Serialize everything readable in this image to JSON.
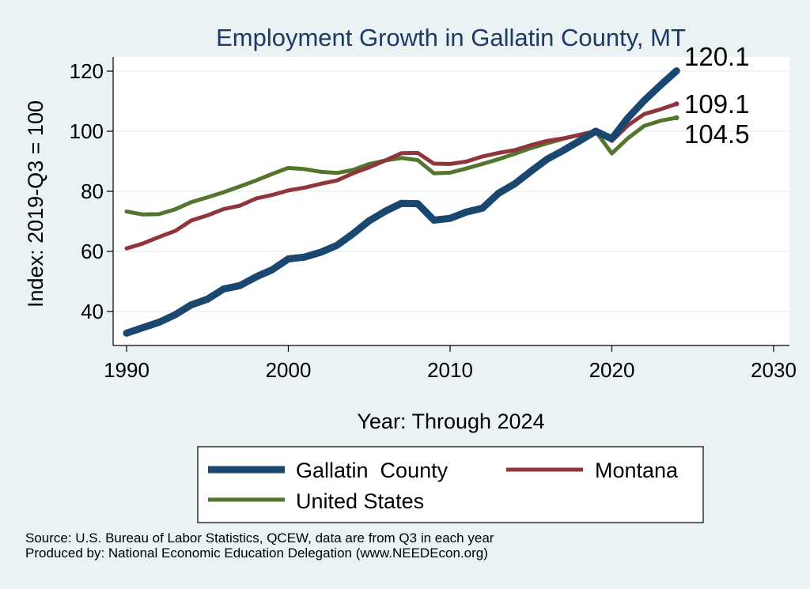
{
  "chart_data": {
    "type": "line",
    "title": "Employment Growth in Gallatin County, MT",
    "xlabel": "Year: Through 2024",
    "ylabel": "Index: 2019-Q3 = 100",
    "xlim": [
      1990,
      2030
    ],
    "ylim": [
      30,
      122
    ],
    "xticks": [
      1990,
      2000,
      2010,
      2020,
      2030
    ],
    "yticks": [
      40,
      60,
      80,
      100,
      120
    ],
    "grid": true,
    "legend_position": "bottom",
    "x": [
      1990,
      1991,
      1992,
      1993,
      1994,
      1995,
      1996,
      1997,
      1998,
      1999,
      2000,
      2001,
      2002,
      2003,
      2004,
      2005,
      2006,
      2007,
      2008,
      2009,
      2010,
      2011,
      2012,
      2013,
      2014,
      2015,
      2016,
      2017,
      2018,
      2019,
      2020,
      2021,
      2022,
      2023,
      2024
    ],
    "series": [
      {
        "name": "Gallatin  County",
        "color": "#1a476f",
        "values": [
          32.8,
          34.6,
          36.4,
          38.9,
          42.2,
          44.1,
          47.5,
          48.6,
          51.5,
          53.9,
          57.5,
          58.1,
          59.7,
          62.0,
          65.9,
          70.2,
          73.4,
          76.0,
          75.9,
          70.4,
          71.0,
          73.1,
          74.4,
          79.4,
          82.5,
          86.7,
          90.7,
          93.6,
          96.8,
          100.0,
          97.5,
          104.5,
          110.2,
          115.3,
          120.1
        ],
        "end_label": "120.1"
      },
      {
        "name": "Montana",
        "color": "#90353b",
        "values": [
          61.0,
          62.6,
          64.8,
          66.8,
          70.3,
          72.0,
          74.1,
          75.2,
          77.6,
          78.8,
          80.3,
          81.2,
          82.5,
          83.6,
          86.0,
          88.0,
          90.3,
          92.7,
          92.8,
          89.2,
          89.1,
          89.9,
          91.6,
          92.8,
          93.7,
          95.4,
          96.8,
          97.6,
          98.8,
          100.0,
          96.8,
          102.0,
          105.7,
          107.3,
          109.1
        ],
        "end_label": "109.1"
      },
      {
        "name": "United States",
        "color": "#55752f",
        "values": [
          73.3,
          72.3,
          72.4,
          74.0,
          76.4,
          78.0,
          79.7,
          81.6,
          83.6,
          85.8,
          87.8,
          87.4,
          86.5,
          86.1,
          87.1,
          89.1,
          90.3,
          91.1,
          90.4,
          86.0,
          86.2,
          87.6,
          89.1,
          90.7,
          92.5,
          94.4,
          96.0,
          97.5,
          98.8,
          100.0,
          92.6,
          97.7,
          101.8,
          103.5,
          104.5
        ],
        "end_label": "104.5"
      }
    ]
  },
  "footer": {
    "source": "Source: U.S. Bureau of Labor Statistics, QCEW, data are from Q3 in each year",
    "produced_by": "Produced by: National Economic Education Delegation (www.NEEDEcon.org)"
  },
  "colors": {
    "background": "#eaf2f3",
    "plot_background": "#ffffff",
    "title": "#1e3964",
    "grid": "#eaf2f3"
  }
}
